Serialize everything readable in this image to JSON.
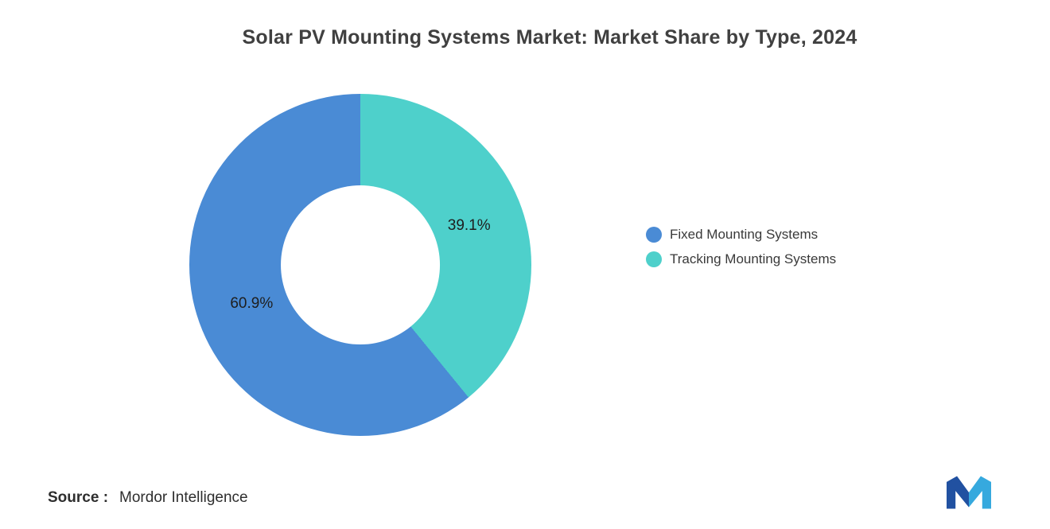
{
  "title": "Solar PV Mounting Systems Market: Market Share by Type, 2024",
  "chart_data": {
    "type": "pie",
    "subtype": "donut",
    "title": "Solar PV Mounting Systems Market: Market Share by Type, 2024",
    "categories": [
      "Fixed Mounting Systems",
      "Tracking Mounting Systems"
    ],
    "values": [
      60.9,
      39.1
    ],
    "labels": [
      "60.9%",
      "39.1%"
    ],
    "colors": [
      "#4A8BD5",
      "#4ED0CB"
    ],
    "unit": "%",
    "start_angle": "top",
    "direction": "counterclockwise",
    "inner_radius_ratio": 0.465,
    "label_radius_ratio": 0.675,
    "legend_position": "right",
    "grid": false
  },
  "legend": {
    "items": [
      {
        "label": "Fixed Mounting Systems",
        "color": "#4A8BD5"
      },
      {
        "label": "Tracking Mounting Systems",
        "color": "#4ED0CB"
      }
    ]
  },
  "source": {
    "label": "Source :",
    "text": "Mordor Intelligence"
  },
  "logo": {
    "name": "Mordor Intelligence",
    "colors": {
      "primary": "#2151A1",
      "secondary": "#36A9DE"
    }
  },
  "text_colors": {
    "title": "#404040",
    "slice_label": "#1e1e1e",
    "legend": "#3a3a3a",
    "source": "#2e2e2e"
  }
}
